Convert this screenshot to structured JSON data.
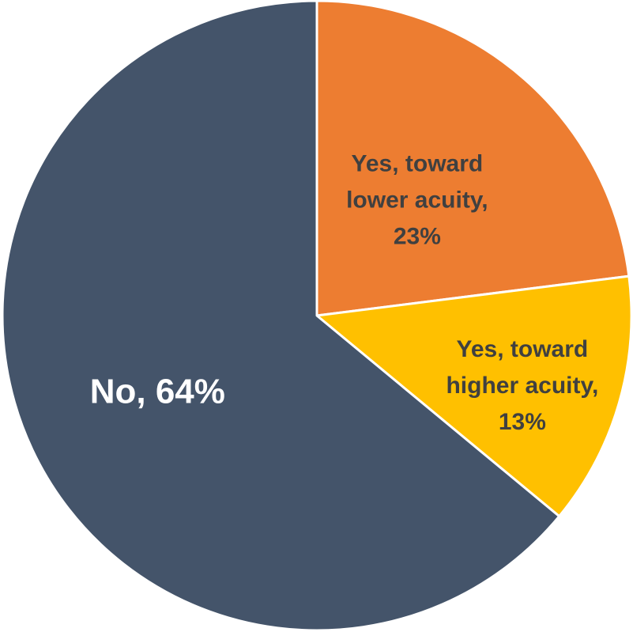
{
  "chart_data": {
    "type": "pie",
    "slices": [
      {
        "label_lines": [
          "Yes, toward",
          "lower acuity,",
          "23%"
        ],
        "value": 23,
        "color": "#ED7D31",
        "label_color": "#404040"
      },
      {
        "label_lines": [
          "Yes, toward",
          "higher acuity,",
          "13%"
        ],
        "value": 13,
        "color": "#FFC000",
        "label_color": "#404040"
      },
      {
        "label_lines": [
          "No, 64%"
        ],
        "value": 64,
        "color": "#44546A",
        "label_color": "#FFFFFF"
      }
    ],
    "start_angle_deg": 0,
    "direction": "clockwise",
    "slice_border_color": "#FFFFFF",
    "legend": "none"
  }
}
